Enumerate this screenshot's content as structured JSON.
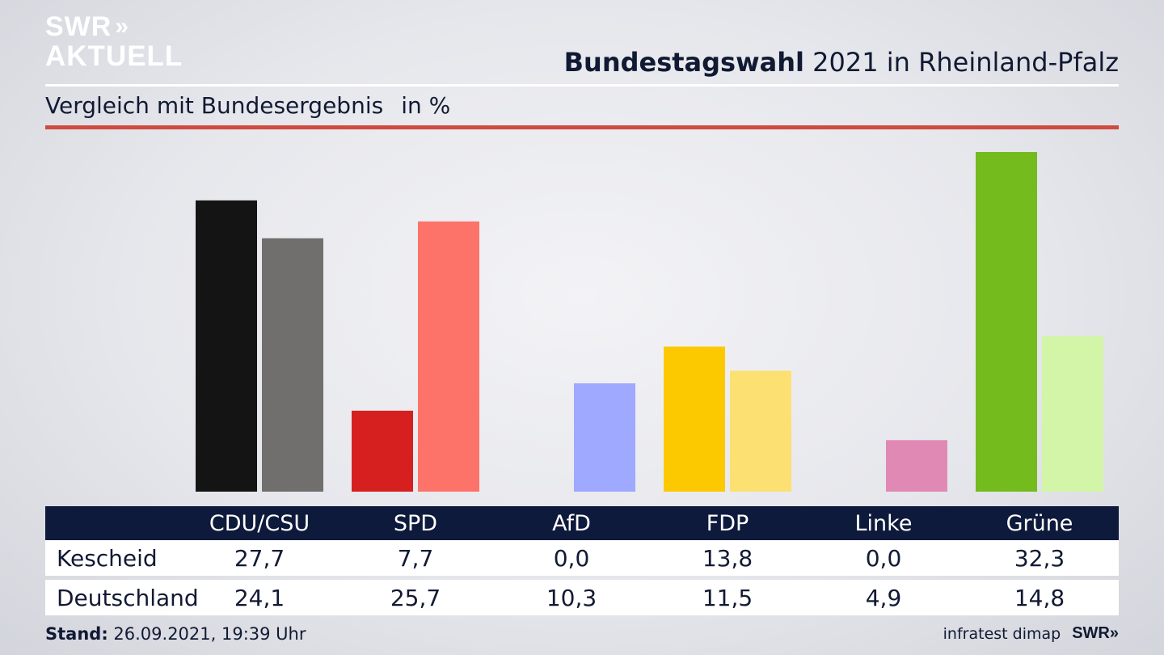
{
  "logo": {
    "line1": "SWR",
    "line2": "AKTUELL",
    "arrows": "»"
  },
  "header": {
    "title_bold": "Bundestagswahl",
    "title_rest": " 2021 in Rheinland-Pfalz",
    "subtitle": "Vergleich mit Bundesergebnis",
    "unit": "in %"
  },
  "chart_data": {
    "type": "bar",
    "categories": [
      "CDU/CSU",
      "SPD",
      "AfD",
      "FDP",
      "Linke",
      "Grüne"
    ],
    "series": [
      {
        "name": "Kescheid",
        "values": [
          27.7,
          7.7,
          0.0,
          13.8,
          0.0,
          32.3
        ],
        "colors": [
          "#141414",
          "#d6201f",
          "#1f6fc4",
          "#fcc900",
          "#c73f8f",
          "#74bb1d"
        ]
      },
      {
        "name": "Deutschland",
        "values": [
          24.1,
          25.7,
          10.3,
          11.5,
          4.9,
          14.8
        ],
        "colors": [
          "#716f6d",
          "#fd7369",
          "#9ea9ff",
          "#fde072",
          "#e089b5",
          "#d3f5a8"
        ]
      }
    ],
    "ylim": [
      0,
      32.3
    ],
    "grid": false,
    "legend": "table-bottom"
  },
  "table": {
    "headers": [
      "CDU/CSU",
      "SPD",
      "AfD",
      "FDP",
      "Linke",
      "Grüne"
    ],
    "rows": [
      {
        "label": "Kescheid",
        "values": [
          "27,7",
          "7,7",
          "0,0",
          "13,8",
          "0,0",
          "32,3"
        ]
      },
      {
        "label": "Deutschland",
        "values": [
          "24,1",
          "25,7",
          "10,3",
          "11,5",
          "4,9",
          "14,8"
        ]
      }
    ]
  },
  "footer": {
    "stand_label": "Stand:",
    "stand_value": " 26.09.2021, 19:39 Uhr",
    "source": "infratest dimap",
    "brand": "SWR»"
  }
}
